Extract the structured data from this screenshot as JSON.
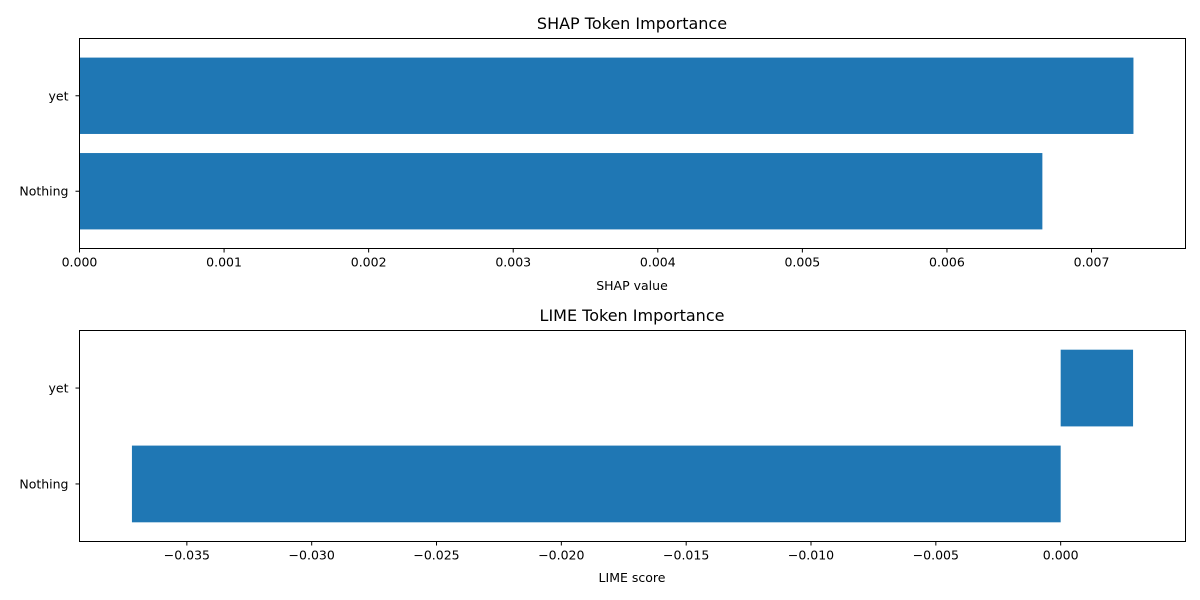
{
  "chart_data": [
    {
      "type": "bar",
      "orientation": "horizontal",
      "title": "SHAP Token Importance",
      "xlabel": "SHAP value",
      "ylabel": "",
      "categories": [
        "yet",
        "Nothing"
      ],
      "values": [
        0.00729,
        0.00666
      ],
      "xlim": [
        0.0,
        0.00765
      ],
      "xticks": [
        0.0,
        0.001,
        0.002,
        0.003,
        0.004,
        0.005,
        0.006,
        0.007
      ],
      "xtick_labels": [
        "0.000",
        "0.001",
        "0.002",
        "0.003",
        "0.004",
        "0.005",
        "0.006",
        "0.007"
      ],
      "bar_color": "#1f77b4",
      "grid": false
    },
    {
      "type": "bar",
      "orientation": "horizontal",
      "title": "LIME Token Importance",
      "xlabel": "LIME score",
      "ylabel": "",
      "categories": [
        "yet",
        "Nothing"
      ],
      "values": [
        0.0029,
        -0.0372
      ],
      "xlim": [
        -0.0393,
        0.005
      ],
      "xticks": [
        -0.035,
        -0.03,
        -0.025,
        -0.02,
        -0.015,
        -0.01,
        -0.005,
        0.0
      ],
      "xtick_labels": [
        "−0.035",
        "−0.030",
        "−0.025",
        "−0.020",
        "−0.015",
        "−0.010",
        "−0.005",
        "0.000"
      ],
      "bar_color": "#1f77b4",
      "grid": false
    }
  ]
}
